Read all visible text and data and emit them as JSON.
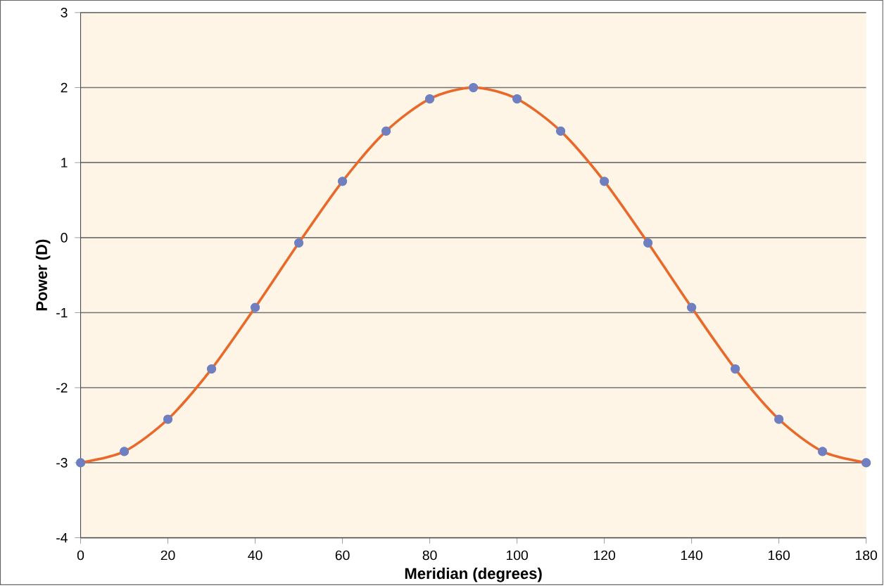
{
  "chart_data": {
    "type": "line",
    "xlabel": "Meridian (degrees)",
    "ylabel": "Power (D)",
    "x": [
      0,
      10,
      20,
      30,
      40,
      50,
      60,
      70,
      80,
      90,
      100,
      110,
      120,
      130,
      140,
      150,
      160,
      170,
      180
    ],
    "series": [
      {
        "color": "#e8692a",
        "marker": "none",
        "values": [
          -3,
          -2.85,
          -2.42,
          -1.75,
          -0.93,
          -0.07,
          0.75,
          1.42,
          1.85,
          2,
          1.85,
          1.42,
          0.75,
          -0.07,
          -0.93,
          -1.75,
          -2.42,
          -2.85,
          -3
        ]
      },
      {
        "type": "scatter",
        "color": "#6f7fc0",
        "marker": "circle",
        "values": [
          -3,
          -2.85,
          -2.42,
          -1.75,
          -0.93,
          -0.07,
          0.75,
          1.42,
          1.85,
          2,
          1.85,
          1.42,
          0.75,
          -0.07,
          -0.93,
          -1.75,
          -2.42,
          -2.85,
          -3
        ]
      }
    ],
    "xlim": [
      0,
      180
    ],
    "ylim": [
      -4,
      3
    ],
    "xticks": [
      0,
      20,
      40,
      60,
      80,
      100,
      120,
      140,
      160,
      180
    ],
    "yticks": [
      -4,
      -3,
      -2,
      -1,
      0,
      1,
      2,
      3
    ],
    "grid": "y"
  }
}
